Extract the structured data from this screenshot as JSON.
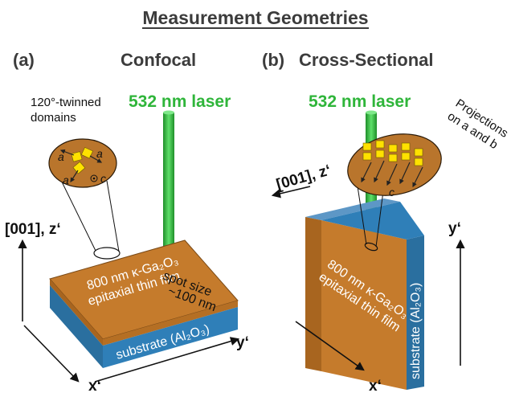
{
  "title": "Measurement Geometries",
  "colors": {
    "film": "#c57b2c",
    "substrate": "#2f7fb8",
    "laser": "#2fb53a",
    "domain": "#ffe100"
  },
  "panel_a": {
    "label": "(a)",
    "name": "Confocal",
    "laser_label": "532 nm laser",
    "twinned_label_1": "120°-twinned",
    "twinned_label_2": "domains",
    "domain_axis_a1": "a",
    "domain_axis_a2": "a",
    "domain_axis_a3": "a",
    "domain_axis_c": "c",
    "axis_z": "[001], z‘",
    "axis_x": "x‘",
    "axis_y": "y‘",
    "film_line1": "800 nm κ-Ga₂O₃",
    "film_line2": "epitaxial thin film",
    "spot_line1": "spot size",
    "spot_line2": "~100 nm",
    "substrate_label": "substrate (Al₂O₃)"
  },
  "panel_b": {
    "label": "(b)",
    "name": "Cross-Sectional",
    "laser_label": "532 nm laser",
    "projection_line1": "Projections",
    "projection_line2": "on a and b",
    "projection_axis_c": "c",
    "axis_z": "[001], z‘",
    "axis_x": "x‘",
    "axis_y": "y‘",
    "film_line1": "800 nm κ-Ga₂O₃",
    "film_line2": "epitaxial thin film",
    "substrate_label": "substrate (Al₂O₃)"
  }
}
